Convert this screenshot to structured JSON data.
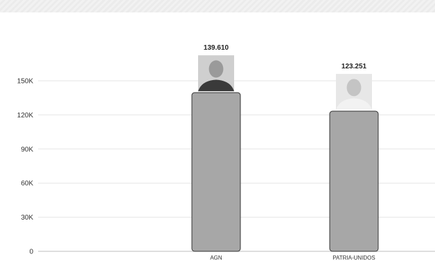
{
  "chart_data": {
    "type": "bar",
    "categories": [
      "AGN",
      "PATRIA-UNIDOS"
    ],
    "values": [
      139610,
      123251
    ],
    "data_labels": [
      "139.610",
      "123.251"
    ],
    "y_ticks": [
      {
        "value": 0,
        "label": "0"
      },
      {
        "value": 30000,
        "label": "30K"
      },
      {
        "value": 60000,
        "label": "60K"
      },
      {
        "value": 90000,
        "label": "90K"
      },
      {
        "value": 120000,
        "label": "120K"
      },
      {
        "value": 150000,
        "label": "150K"
      }
    ],
    "ylim": [
      0,
      150000
    ],
    "grid": true,
    "bar_color": "#a7a7a7",
    "bar_stroke": "#333333"
  }
}
